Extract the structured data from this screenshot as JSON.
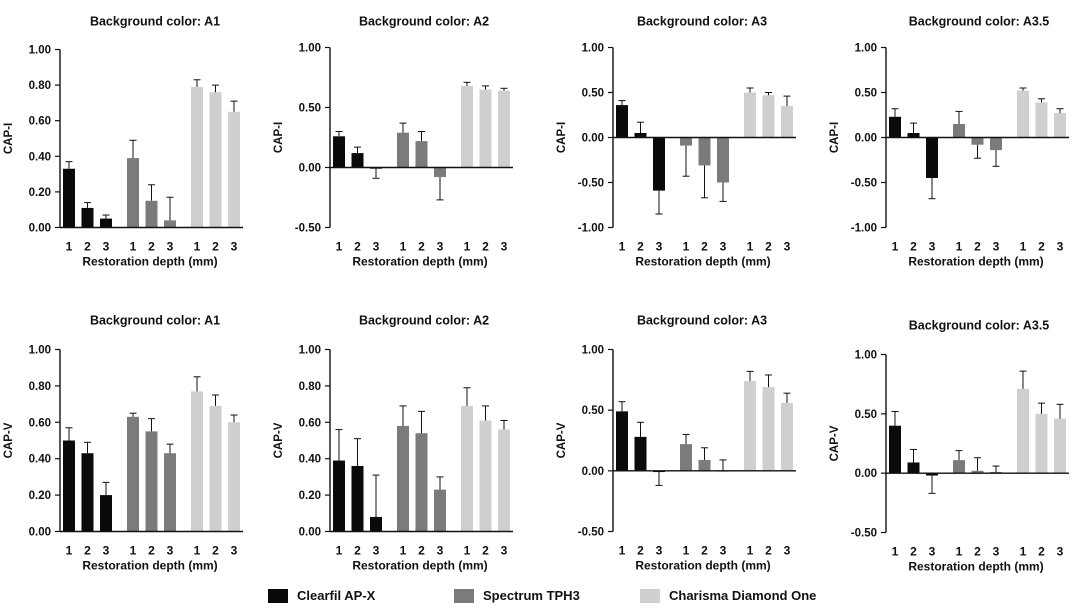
{
  "colors": {
    "series_1": "#0a0a0a",
    "series_2": "#7b7b7b",
    "series_3": "#cfcfcf",
    "axis": "#111111"
  },
  "legend": [
    {
      "label": "Clearfil AP-X",
      "color": "#0a0a0a"
    },
    {
      "label": "Spectrum TPH3",
      "color": "#7b7b7b"
    },
    {
      "label": "Charisma Diamond One",
      "color": "#cfcfcf"
    }
  ],
  "chart_data": [
    {
      "type": "bar",
      "title": "Background color: A1",
      "ylabel": "CAP-I",
      "xlabel": "Restoration depth (mm)",
      "ylim": [
        0,
        1.0
      ],
      "yticks": [
        "0.00",
        "0.20",
        "0.40",
        "0.60",
        "0.80",
        "1.00"
      ],
      "ytick_values": [
        0,
        0.2,
        0.4,
        0.6,
        0.8,
        1.0
      ],
      "categories": [
        "1",
        "2",
        "3"
      ],
      "series": [
        {
          "name": "Clearfil AP-X",
          "values": [
            0.33,
            0.11,
            0.05
          ],
          "errors": [
            0.04,
            0.03,
            0.02
          ]
        },
        {
          "name": "Spectrum TPH3",
          "values": [
            0.39,
            0.15,
            0.04
          ],
          "errors": [
            0.1,
            0.09,
            0.13
          ]
        },
        {
          "name": "Charisma Diamond One",
          "values": [
            0.79,
            0.76,
            0.65
          ],
          "errors": [
            0.04,
            0.04,
            0.06
          ]
        }
      ]
    },
    {
      "type": "bar",
      "title": "Background color: A2",
      "ylabel": "CAP-I",
      "xlabel": "Restoration depth (mm)",
      "ylim": [
        -0.5,
        1.0
      ],
      "yticks": [
        "-0.50",
        "0.00",
        "0.50",
        "1.00"
      ],
      "ytick_values": [
        -0.5,
        0,
        0.5,
        1.0
      ],
      "categories": [
        "1",
        "2",
        "3"
      ],
      "series": [
        {
          "name": "Clearfil AP-X",
          "values": [
            0.26,
            0.12,
            -0.01
          ],
          "errors": [
            0.04,
            0.05,
            0.08
          ]
        },
        {
          "name": "Spectrum TPH3",
          "values": [
            0.29,
            0.22,
            -0.08
          ],
          "errors": [
            0.08,
            0.08,
            0.19
          ]
        },
        {
          "name": "Charisma Diamond One",
          "values": [
            0.68,
            0.65,
            0.64
          ],
          "errors": [
            0.03,
            0.03,
            0.02
          ]
        }
      ]
    },
    {
      "type": "bar",
      "title": "Background color: A3",
      "ylabel": "CAP-I",
      "xlabel": "Restoration depth (mm)",
      "ylim": [
        -1.0,
        1.0
      ],
      "yticks": [
        "-1.00",
        "-0.50",
        "0.00",
        "0.50",
        "1.00"
      ],
      "ytick_values": [
        -1.0,
        -0.5,
        0,
        0.5,
        1.0
      ],
      "categories": [
        "1",
        "2",
        "3"
      ],
      "series": [
        {
          "name": "Clearfil AP-X",
          "values": [
            0.36,
            0.05,
            -0.59
          ],
          "errors": [
            0.05,
            0.12,
            0.26
          ]
        },
        {
          "name": "Spectrum TPH3",
          "values": [
            -0.09,
            -0.31,
            -0.5
          ],
          "errors": [
            0.34,
            0.36,
            0.21
          ]
        },
        {
          "name": "Charisma Diamond One",
          "values": [
            0.5,
            0.47,
            0.35
          ],
          "errors": [
            0.05,
            0.03,
            0.11
          ]
        }
      ]
    },
    {
      "type": "bar",
      "title": "Background color: A3.5",
      "ylabel": "CAP-I",
      "xlabel": "Restoration depth (mm)",
      "ylim": [
        -1.0,
        1.0
      ],
      "yticks": [
        "-1.00",
        "-0.50",
        "0.00",
        "0.50",
        "1.00"
      ],
      "ytick_values": [
        -1.0,
        -0.5,
        0,
        0.5,
        1.0
      ],
      "categories": [
        "1",
        "2",
        "3"
      ],
      "series": [
        {
          "name": "Clearfil AP-X",
          "values": [
            0.23,
            0.05,
            -0.45
          ],
          "errors": [
            0.09,
            0.11,
            0.23
          ]
        },
        {
          "name": "Spectrum TPH3",
          "values": [
            0.15,
            -0.08,
            -0.14
          ],
          "errors": [
            0.14,
            0.15,
            0.18
          ]
        },
        {
          "name": "Charisma Diamond One",
          "values": [
            0.52,
            0.39,
            0.27
          ],
          "errors": [
            0.03,
            0.04,
            0.05
          ]
        }
      ]
    },
    {
      "type": "bar",
      "title": "Background color: A1",
      "ylabel": "CAP-V",
      "xlabel": "Restoration depth (mm)",
      "ylim": [
        0,
        1.0
      ],
      "yticks": [
        "0.00",
        "0.20",
        "0.40",
        "0.60",
        "0.80",
        "1.00"
      ],
      "ytick_values": [
        0,
        0.2,
        0.4,
        0.6,
        0.8,
        1.0
      ],
      "categories": [
        "1",
        "2",
        "3"
      ],
      "series": [
        {
          "name": "Clearfil AP-X",
          "values": [
            0.5,
            0.43,
            0.2
          ],
          "errors": [
            0.07,
            0.06,
            0.07
          ]
        },
        {
          "name": "Spectrum TPH3",
          "values": [
            0.63,
            0.55,
            0.43
          ],
          "errors": [
            0.02,
            0.07,
            0.05
          ]
        },
        {
          "name": "Charisma Diamond One",
          "values": [
            0.77,
            0.69,
            0.6
          ],
          "errors": [
            0.08,
            0.06,
            0.04
          ]
        }
      ]
    },
    {
      "type": "bar",
      "title": "Background color: A2",
      "ylabel": "CAP-V",
      "xlabel": "Restoration depth (mm)",
      "ylim": [
        0,
        1.0
      ],
      "yticks": [
        "0.00",
        "0.20",
        "0.40",
        "0.60",
        "0.80",
        "1.00"
      ],
      "ytick_values": [
        0,
        0.2,
        0.4,
        0.6,
        0.8,
        1.0
      ],
      "categories": [
        "1",
        "2",
        "3"
      ],
      "series": [
        {
          "name": "Clearfil AP-X",
          "values": [
            0.39,
            0.36,
            0.08
          ],
          "errors": [
            0.17,
            0.15,
            0.23
          ]
        },
        {
          "name": "Spectrum TPH3",
          "values": [
            0.58,
            0.54,
            0.23
          ],
          "errors": [
            0.11,
            0.12,
            0.07
          ]
        },
        {
          "name": "Charisma Diamond One",
          "values": [
            0.69,
            0.61,
            0.56
          ],
          "errors": [
            0.1,
            0.08,
            0.05
          ]
        }
      ]
    },
    {
      "type": "bar",
      "title": "Background color: A3",
      "ylabel": "CAP-V",
      "xlabel": "Restoration depth (mm)",
      "ylim": [
        -0.5,
        1.0
      ],
      "yticks": [
        "-0.50",
        "0.00",
        "0.50",
        "1.00"
      ],
      "ytick_values": [
        -0.5,
        0,
        0.5,
        1.0
      ],
      "categories": [
        "1",
        "2",
        "3"
      ],
      "series": [
        {
          "name": "Clearfil AP-X",
          "values": [
            0.49,
            0.28,
            -0.01
          ],
          "errors": [
            0.08,
            0.12,
            0.11
          ]
        },
        {
          "name": "Spectrum TPH3",
          "values": [
            0.22,
            0.09,
            0.0
          ],
          "errors": [
            0.08,
            0.1,
            0.09
          ]
        },
        {
          "name": "Charisma Diamond One",
          "values": [
            0.74,
            0.69,
            0.56
          ],
          "errors": [
            0.08,
            0.1,
            0.08
          ]
        }
      ]
    },
    {
      "type": "bar",
      "title": "Background color: A3.5",
      "ylabel": "CAP-V",
      "xlabel": "Restoration depth (mm)",
      "ylim": [
        -0.5,
        1.0
      ],
      "yticks": [
        "-0.50",
        "0.00",
        "0.50",
        "1.00"
      ],
      "ytick_values": [
        -0.5,
        0,
        0.5,
        1.0
      ],
      "categories": [
        "1",
        "2",
        "3"
      ],
      "series": [
        {
          "name": "Clearfil AP-X",
          "values": [
            0.4,
            0.09,
            -0.02
          ],
          "errors": [
            0.12,
            0.11,
            0.15
          ]
        },
        {
          "name": "Spectrum TPH3",
          "values": [
            0.11,
            0.02,
            0.01
          ],
          "errors": [
            0.08,
            0.11,
            0.05
          ]
        },
        {
          "name": "Charisma Diamond One",
          "values": [
            0.71,
            0.5,
            0.46
          ],
          "errors": [
            0.15,
            0.09,
            0.12
          ]
        }
      ]
    }
  ]
}
